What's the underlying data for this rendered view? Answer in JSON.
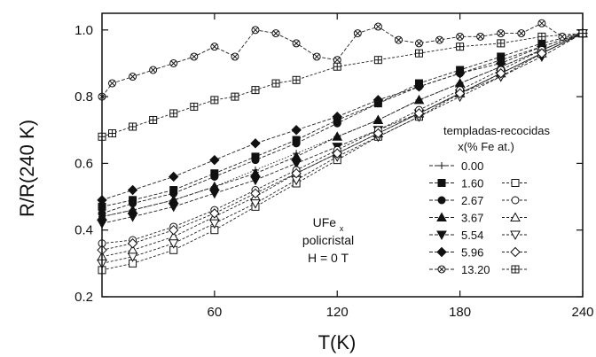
{
  "chart_data": {
    "type": "line",
    "xlabel": "T(K)",
    "ylabel": "R/R(240 K)",
    "xlim": [
      5,
      240
    ],
    "ylim": [
      0.2,
      1.05
    ],
    "xticks": [
      60,
      120,
      180,
      240
    ],
    "yticks": [
      0.2,
      0.4,
      0.6,
      0.8,
      1.0
    ],
    "legend": {
      "placement": "right",
      "title_line1": "templadas-recocidas",
      "title_line2": "x(% Fe at.)"
    },
    "annotation": {
      "line1": "UFe",
      "line1_sub": "x",
      "line2": "policristal",
      "line3": "H = 0 T"
    },
    "series": [
      {
        "name": "0.00",
        "marker": "plus",
        "group": "templadas",
        "x": [
          5,
          20,
          40,
          60,
          80,
          100,
          120,
          140,
          160,
          180,
          200,
          220,
          240
        ],
        "y": [
          0.44,
          0.46,
          0.49,
          0.53,
          0.58,
          0.63,
          0.68,
          0.73,
          0.79,
          0.84,
          0.89,
          0.94,
          0.99
        ]
      },
      {
        "name": "1.60",
        "marker": "square-filled",
        "group": "templadas",
        "x": [
          5,
          20,
          40,
          60,
          80,
          100,
          120,
          140,
          160,
          180,
          200,
          220,
          240
        ],
        "y": [
          0.47,
          0.49,
          0.52,
          0.57,
          0.62,
          0.67,
          0.73,
          0.78,
          0.84,
          0.88,
          0.92,
          0.96,
          0.99
        ]
      },
      {
        "name": "2.67",
        "marker": "circle-filled",
        "group": "templadas",
        "x": [
          5,
          20,
          40,
          60,
          80,
          100,
          120,
          140,
          160,
          180,
          200,
          220,
          240
        ],
        "y": [
          0.45,
          0.48,
          0.51,
          0.56,
          0.61,
          0.66,
          0.72,
          0.78,
          0.83,
          0.87,
          0.91,
          0.95,
          0.99
        ]
      },
      {
        "name": "3.67",
        "marker": "triangle-up-filled",
        "group": "templadas",
        "x": [
          5,
          20,
          40,
          60,
          80,
          100,
          120,
          140,
          160,
          180,
          200,
          220,
          240
        ],
        "y": [
          0.44,
          0.46,
          0.49,
          0.53,
          0.57,
          0.62,
          0.68,
          0.73,
          0.79,
          0.84,
          0.89,
          0.94,
          0.99
        ]
      },
      {
        "name": "5.54",
        "marker": "triangle-down-filled",
        "group": "templadas",
        "x": [
          5,
          20,
          40,
          60,
          80,
          100,
          120,
          140,
          160,
          180,
          200,
          220,
          240
        ],
        "y": [
          0.42,
          0.44,
          0.47,
          0.51,
          0.55,
          0.6,
          0.65,
          0.7,
          0.75,
          0.81,
          0.86,
          0.92,
          0.99
        ]
      },
      {
        "name": "5.96",
        "marker": "diamond-filled",
        "group": "templadas",
        "x": [
          5,
          20,
          40,
          60,
          80,
          100,
          120,
          140,
          160,
          180,
          200,
          220,
          240
        ],
        "y": [
          0.49,
          0.52,
          0.56,
          0.61,
          0.66,
          0.7,
          0.74,
          0.79,
          0.83,
          0.87,
          0.9,
          0.95,
          0.99
        ]
      },
      {
        "name": "13.20",
        "marker": "circle-x",
        "group": "templadas",
        "x": [
          5,
          10,
          20,
          30,
          40,
          50,
          60,
          70,
          80,
          90,
          100,
          110,
          120,
          130,
          140,
          150,
          160,
          170,
          180,
          190,
          200,
          210,
          220,
          230,
          240
        ],
        "y": [
          0.8,
          0.84,
          0.86,
          0.88,
          0.9,
          0.92,
          0.95,
          0.92,
          1.0,
          0.99,
          0.96,
          0.92,
          0.91,
          0.99,
          1.01,
          0.97,
          0.96,
          0.97,
          0.98,
          0.98,
          0.99,
          0.99,
          1.02,
          0.98,
          0.99
        ]
      },
      {
        "name": "1.60",
        "marker": "square-open",
        "group": "recocidas",
        "x": [
          5,
          20,
          40,
          60,
          80,
          100,
          120,
          140,
          160,
          180,
          200,
          220,
          240
        ],
        "y": [
          0.28,
          0.3,
          0.34,
          0.4,
          0.47,
          0.54,
          0.61,
          0.68,
          0.74,
          0.81,
          0.87,
          0.93,
          0.99
        ]
      },
      {
        "name": "2.67",
        "marker": "circle-open",
        "group": "recocidas",
        "x": [
          5,
          20,
          40,
          60,
          80,
          100,
          120,
          140,
          160,
          180,
          200,
          220,
          240
        ],
        "y": [
          0.36,
          0.37,
          0.41,
          0.46,
          0.52,
          0.58,
          0.64,
          0.7,
          0.76,
          0.82,
          0.88,
          0.94,
          0.99
        ]
      },
      {
        "name": "3.67",
        "marker": "triangle-up-open",
        "group": "recocidas",
        "x": [
          5,
          20,
          40,
          60,
          80,
          100,
          120,
          140,
          160,
          180,
          200,
          220,
          240
        ],
        "y": [
          0.32,
          0.34,
          0.38,
          0.44,
          0.5,
          0.57,
          0.63,
          0.69,
          0.75,
          0.81,
          0.87,
          0.93,
          0.99
        ]
      },
      {
        "name": "5.54",
        "marker": "triangle-down-open",
        "group": "recocidas",
        "x": [
          5,
          20,
          40,
          60,
          80,
          100,
          120,
          140,
          160,
          180,
          200,
          220,
          240
        ],
        "y": [
          0.3,
          0.32,
          0.36,
          0.42,
          0.48,
          0.55,
          0.62,
          0.68,
          0.74,
          0.8,
          0.86,
          0.93,
          0.99
        ]
      },
      {
        "name": "5.96",
        "marker": "diamond-open",
        "group": "recocidas",
        "x": [
          5,
          20,
          40,
          60,
          80,
          100,
          120,
          140,
          160,
          180,
          200,
          220,
          240
        ],
        "y": [
          0.34,
          0.36,
          0.4,
          0.45,
          0.51,
          0.57,
          0.63,
          0.69,
          0.75,
          0.81,
          0.87,
          0.93,
          0.99
        ]
      },
      {
        "name": "13.20",
        "marker": "square-plus",
        "group": "recocidas",
        "x": [
          5,
          10,
          20,
          30,
          40,
          50,
          60,
          70,
          80,
          90,
          100,
          120,
          140,
          160,
          180,
          200,
          220,
          240
        ],
        "y": [
          0.68,
          0.69,
          0.71,
          0.73,
          0.75,
          0.77,
          0.79,
          0.8,
          0.82,
          0.84,
          0.85,
          0.89,
          0.91,
          0.93,
          0.95,
          0.96,
          0.98,
          0.99
        ]
      }
    ]
  }
}
